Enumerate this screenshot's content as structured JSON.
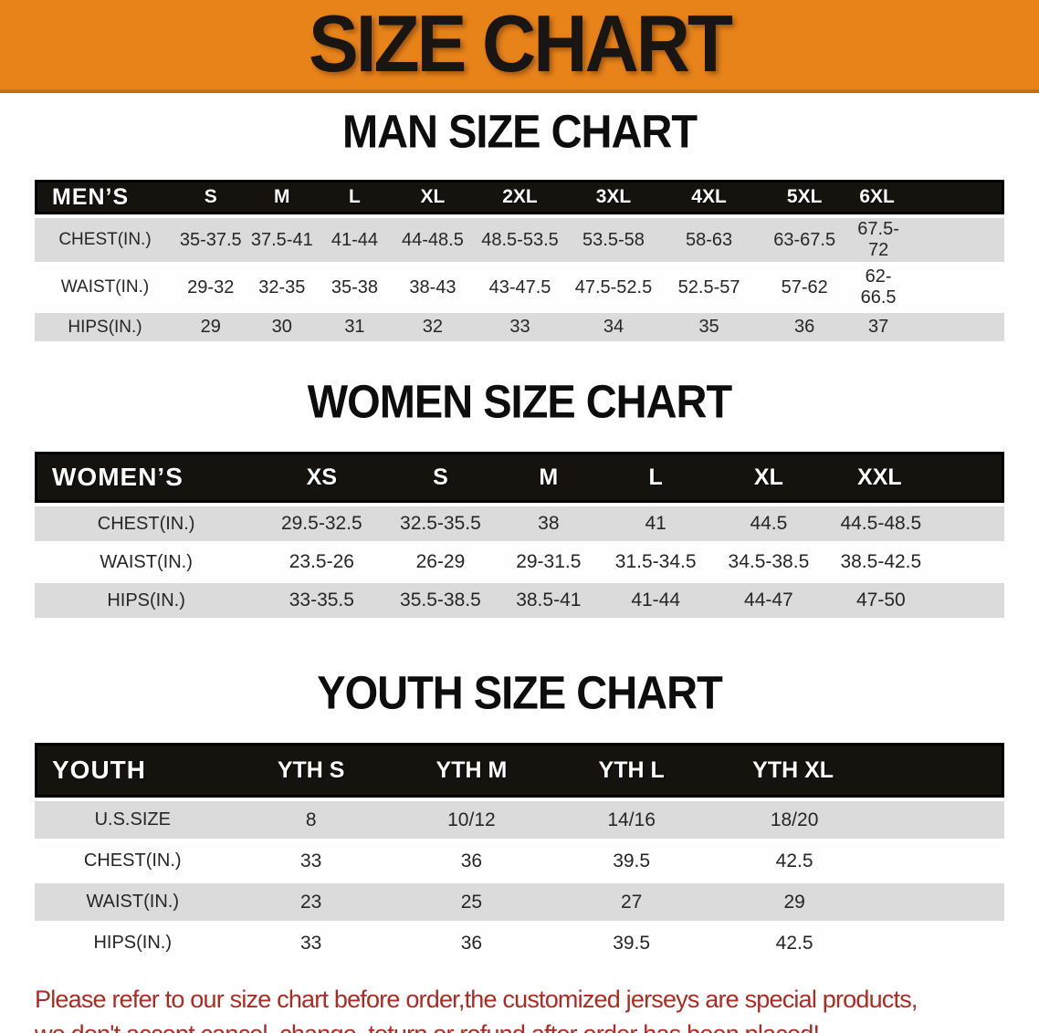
{
  "banner": {
    "title": "SIZE CHART",
    "bg_color": "#e8831a",
    "text_color": "#181512"
  },
  "sections": [
    {
      "id": "men",
      "heading": "MAN SIZE CHART",
      "header_label": "MEN’S",
      "columns": [
        "S",
        "M",
        "L",
        "XL",
        "2XL",
        "3XL",
        "4XL",
        "5XL",
        "6XL"
      ],
      "rows": [
        {
          "label": "CHEST(IN.)",
          "values": [
            "35-37.5",
            "37.5-41",
            "41-44",
            "44-48.5",
            "48.5-53.5",
            "53.5-58",
            "58-63",
            "63-67.5",
            "67.5-72"
          ]
        },
        {
          "label": "WAIST(IN.)",
          "values": [
            "29-32",
            "32-35",
            "35-38",
            "38-43",
            "43-47.5",
            "47.5-52.5",
            "52.5-57",
            "57-62",
            "62-66.5"
          ]
        },
        {
          "label": "HIPS(IN.)",
          "values": [
            "29",
            "30",
            "31",
            "32",
            "33",
            "34",
            "35",
            "36",
            "37"
          ]
        }
      ]
    },
    {
      "id": "women",
      "heading": "WOMEN SIZE CHART",
      "header_label": "WOMEN’S",
      "columns": [
        "XS",
        "S",
        "M",
        "L",
        "XL",
        "XXL"
      ],
      "rows": [
        {
          "label": "CHEST(IN.)",
          "values": [
            "29.5-32.5",
            "32.5-35.5",
            "38",
            "41",
            "44.5",
            "44.5-48.5"
          ]
        },
        {
          "label": "WAIST(IN.)",
          "values": [
            "23.5-26",
            "26-29",
            "29-31.5",
            "31.5-34.5",
            "34.5-38.5",
            "38.5-42.5"
          ]
        },
        {
          "label": "HIPS(IN.)",
          "values": [
            "33-35.5",
            "35.5-38.5",
            "38.5-41",
            "41-44",
            "44-47",
            "47-50"
          ]
        }
      ]
    },
    {
      "id": "youth",
      "heading": "YOUTH SIZE CHART",
      "header_label": "YOUTH",
      "columns": [
        "YTH S",
        "YTH M",
        "YTH L",
        "YTH XL"
      ],
      "rows": [
        {
          "label": "U.S.SIZE",
          "values": [
            "8",
            "10/12",
            "14/16",
            "18/20"
          ]
        },
        {
          "label": "CHEST(IN.)",
          "values": [
            "33",
            "36",
            "39.5",
            "42.5"
          ]
        },
        {
          "label": "WAIST(IN.)",
          "values": [
            "23",
            "25",
            "27",
            "29"
          ]
        },
        {
          "label": "HIPS(IN.)",
          "values": [
            "33",
            "36",
            "39.5",
            "42.5"
          ]
        }
      ]
    }
  ],
  "footer": {
    "line1": "Please refer to our size chart before order,the customized jerseys are special products,",
    "line2": "we don't accept cancel, change, teturn or refund after order has been placed!",
    "text_color": "#ae2b23"
  }
}
